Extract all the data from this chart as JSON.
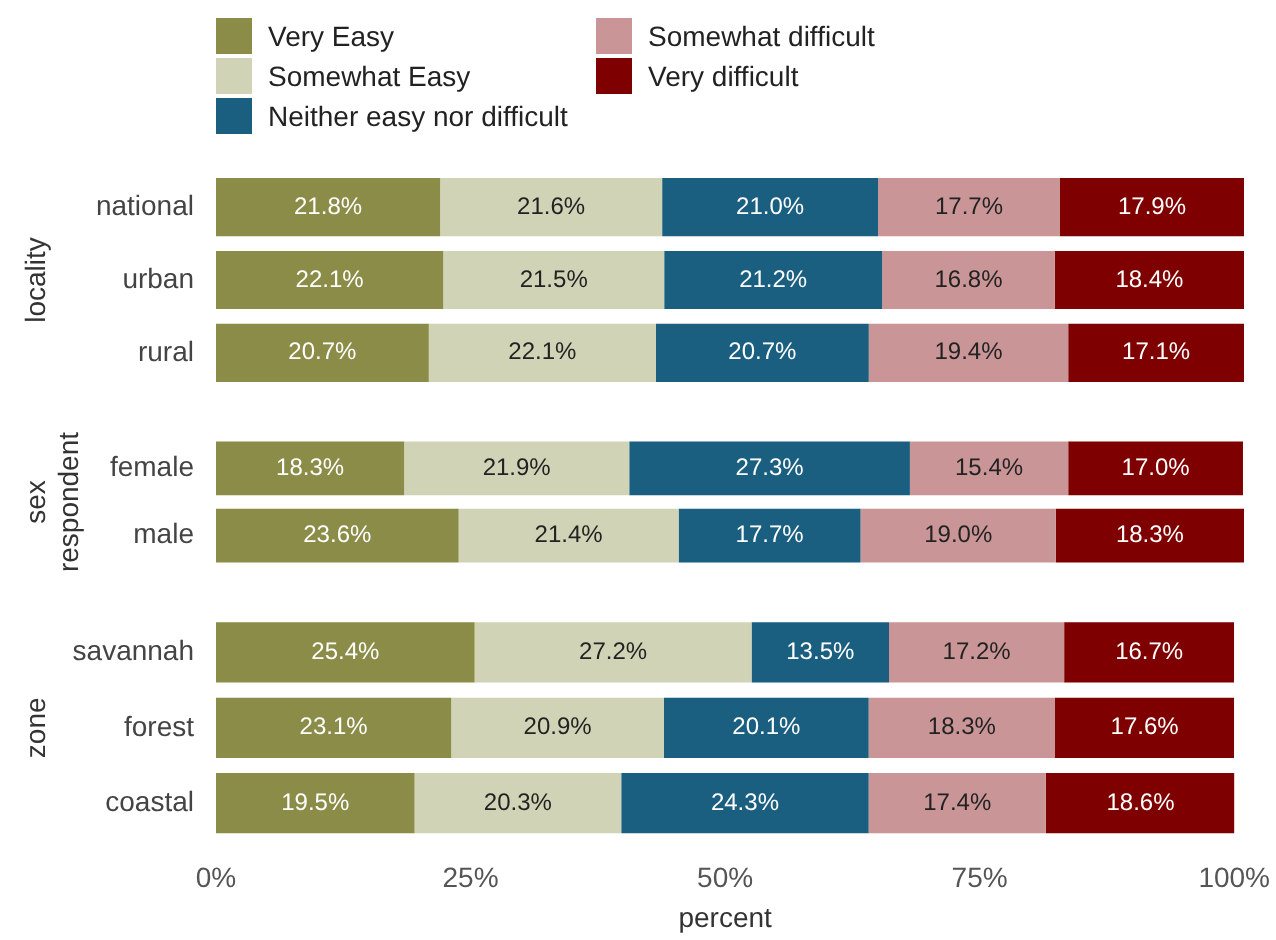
{
  "chart_data": [
    {
      "type": "bar",
      "orientation": "horizontal",
      "stacked": true,
      "ylabel": "locality",
      "categories": [
        "national",
        "urban",
        "rural"
      ],
      "xlim": [
        0,
        100
      ],
      "tick_labels": "y",
      "grid": false,
      "legend": "top",
      "series": [
        {
          "name": "Very Easy",
          "color": "#8a8c47",
          "values": [
            21.8,
            22.1,
            20.7
          ],
          "value_labels": [
            "21.8%",
            "22.1%",
            "20.7%"
          ]
        },
        {
          "name": "Somewhat Easy",
          "color": "#d0d3b5",
          "values": [
            21.6,
            21.5,
            22.1
          ],
          "value_labels": [
            "21.6%",
            "21.5%",
            "22.1%"
          ]
        },
        {
          "name": "Neither easy nor difficult",
          "color": "#1a5e80",
          "values": [
            21.0,
            21.2,
            20.7
          ],
          "value_labels": [
            "21.0%",
            "21.2%",
            "20.7%"
          ]
        },
        {
          "name": "Somewhat difficult",
          "color": "#c99597",
          "values": [
            17.7,
            16.8,
            19.4
          ],
          "value_labels": [
            "17.7%",
            "16.8%",
            "19.4%"
          ]
        },
        {
          "name": "Very difficult",
          "color": "#7e0000",
          "values": [
            17.9,
            18.4,
            17.1
          ],
          "value_labels": [
            "17.9%",
            "18.4%",
            "17.1%"
          ]
        }
      ]
    },
    {
      "type": "bar",
      "orientation": "horizontal",
      "stacked": true,
      "ylabel": "sex respondent",
      "categories": [
        "female",
        "male"
      ],
      "xlim": [
        0,
        100
      ],
      "tick_labels": "y",
      "grid": false,
      "series": [
        {
          "color": "#8a8c47",
          "values": [
            18.3,
            23.6
          ],
          "value_labels": [
            "18.3%",
            "23.6%"
          ]
        },
        {
          "color": "#d0d3b5",
          "values": [
            21.9,
            21.4
          ],
          "value_labels": [
            "21.9%",
            "21.4%"
          ]
        },
        {
          "color": "#1a5e80",
          "values": [
            27.3,
            17.7
          ],
          "value_labels": [
            "27.3%",
            "17.7%"
          ]
        },
        {
          "color": "#c99597",
          "values": [
            15.4,
            19.0
          ],
          "value_labels": [
            "15.4%",
            "19.0%"
          ]
        },
        {
          "color": "#7e0000",
          "values": [
            17.0,
            18.3
          ],
          "value_labels": [
            "17.0%",
            "18.3%"
          ]
        }
      ]
    },
    {
      "type": "bar",
      "orientation": "horizontal",
      "stacked": true,
      "ylabel": "zone",
      "xlabel": "percent",
      "categories": [
        "savannah",
        "forest",
        "coastal"
      ],
      "xlim": [
        0,
        100
      ],
      "xticks": [
        {
          "value": 0,
          "label": "0%"
        },
        {
          "value": 25,
          "label": "25%"
        },
        {
          "value": 50,
          "label": "50%"
        },
        {
          "value": 75,
          "label": "75%"
        },
        {
          "value": 100,
          "label": "100%"
        }
      ],
      "grid": false,
      "series": [
        {
          "color": "#8a8c47",
          "values": [
            25.4,
            23.1,
            19.5
          ],
          "value_labels": [
            "25.4%",
            "23.1%",
            "19.5%"
          ]
        },
        {
          "color": "#d0d3b5",
          "values": [
            27.2,
            20.9,
            20.3
          ],
          "value_labels": [
            "27.2%",
            "20.9%",
            "20.3%"
          ]
        },
        {
          "color": "#1a5e80",
          "values": [
            13.5,
            20.1,
            24.3
          ],
          "value_labels": [
            "13.5%",
            "20.1%",
            "24.3%"
          ]
        },
        {
          "color": "#c99597",
          "values": [
            17.2,
            18.3,
            17.4
          ],
          "value_labels": [
            "17.2%",
            "18.3%",
            "17.4%"
          ]
        },
        {
          "color": "#7e0000",
          "values": [
            16.7,
            17.6,
            18.6
          ],
          "value_labels": [
            "16.7%",
            "17.6%",
            "18.6%"
          ]
        }
      ]
    }
  ]
}
